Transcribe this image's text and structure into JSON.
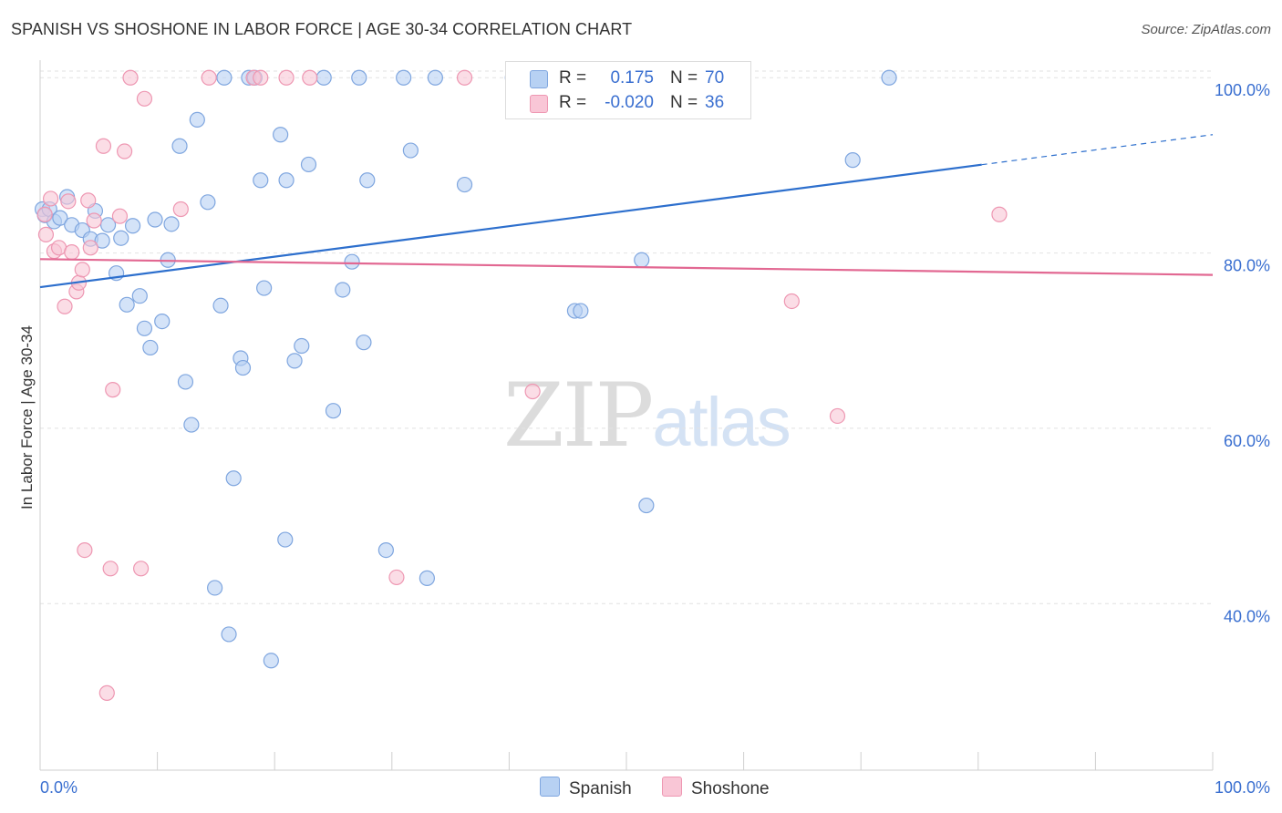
{
  "title": "SPANISH VS SHOSHONE IN LABOR FORCE | AGE 30-34 CORRELATION CHART",
  "source": "Source: ZipAtlas.com",
  "colors": {
    "blue_fill": "#b7d1f3",
    "blue_stroke": "#7fa6df",
    "blue_line": "#2d6fcd",
    "pink_fill": "#f9c6d6",
    "pink_stroke": "#ee97b2",
    "pink_line": "#e26892",
    "grid": "#e2e2e2",
    "tick_label": "#3a6fd0"
  },
  "legend_top": {
    "rows": [
      {
        "r_label": "R =",
        "r_value": "0.175",
        "n_label": "N =",
        "n_value": "70"
      },
      {
        "r_label": "R =",
        "r_value": "-0.020",
        "n_label": "N =",
        "n_value": "36"
      }
    ]
  },
  "legend_bottom": {
    "items": [
      "Spanish",
      "Shoshone"
    ]
  },
  "watermark": {
    "zip": "ZIP",
    "atlas": "atlas"
  },
  "chart_data": {
    "type": "scatter",
    "title": "SPANISH VS SHOSHONE IN LABOR FORCE | AGE 30-34 CORRELATION CHART",
    "xlabel": "",
    "ylabel": "In Labor Force | Age 30-34",
    "xlim": [
      0,
      100
    ],
    "ylim": [
      21,
      102
    ],
    "x_tick_labels": [
      "0.0%",
      "100.0%"
    ],
    "y_ticks": [
      40,
      60,
      80,
      100
    ],
    "y_tick_labels": [
      "40.0%",
      "60.0%",
      "80.0%",
      "100.0%"
    ],
    "grid": true,
    "legend_position": "top-center",
    "series": [
      {
        "name": "Spanish",
        "r": 0.175,
        "n": 70,
        "trend": {
          "x0": 0,
          "y0": 76.1,
          "x1": 100,
          "y1": 93.5,
          "solid_until": 80.3
        },
        "points": [
          [
            0.2,
            85.0
          ],
          [
            0.4,
            84.3
          ],
          [
            0.8,
            85.0
          ],
          [
            1.2,
            83.6
          ],
          [
            1.7,
            84.0
          ],
          [
            2.3,
            86.4
          ],
          [
            2.7,
            83.2
          ],
          [
            3.6,
            82.6
          ],
          [
            4.3,
            81.6
          ],
          [
            4.7,
            84.8
          ],
          [
            5.3,
            81.4
          ],
          [
            5.8,
            83.2
          ],
          [
            6.5,
            77.7
          ],
          [
            6.9,
            81.7
          ],
          [
            7.4,
            74.1
          ],
          [
            7.9,
            83.1
          ],
          [
            8.5,
            75.1
          ],
          [
            8.9,
            71.4
          ],
          [
            9.4,
            69.2
          ],
          [
            9.8,
            83.8
          ],
          [
            10.4,
            72.2
          ],
          [
            10.9,
            79.2
          ],
          [
            11.2,
            83.3
          ],
          [
            11.9,
            92.2
          ],
          [
            12.4,
            65.3
          ],
          [
            12.9,
            60.4
          ],
          [
            13.4,
            95.2
          ],
          [
            14.3,
            85.8
          ],
          [
            14.9,
            41.8
          ],
          [
            15.4,
            74.0
          ],
          [
            15.7,
            100.0
          ],
          [
            16.1,
            36.5
          ],
          [
            16.5,
            54.3
          ],
          [
            17.1,
            68.0
          ],
          [
            17.3,
            66.9
          ],
          [
            17.8,
            100.0
          ],
          [
            18.3,
            100.0
          ],
          [
            18.8,
            88.3
          ],
          [
            19.1,
            76.0
          ],
          [
            19.7,
            33.5
          ],
          [
            20.5,
            93.5
          ],
          [
            20.9,
            47.3
          ],
          [
            21.0,
            88.3
          ],
          [
            21.7,
            67.7
          ],
          [
            22.3,
            69.4
          ],
          [
            22.9,
            90.1
          ],
          [
            24.2,
            100.0
          ],
          [
            25.0,
            62.0
          ],
          [
            25.8,
            75.8
          ],
          [
            26.6,
            79.0
          ],
          [
            27.2,
            100.0
          ],
          [
            27.6,
            69.8
          ],
          [
            27.9,
            88.3
          ],
          [
            29.5,
            46.1
          ],
          [
            31.0,
            100.0
          ],
          [
            31.6,
            91.7
          ],
          [
            33.0,
            42.9
          ],
          [
            33.7,
            100.0
          ],
          [
            36.2,
            87.8
          ],
          [
            40.3,
            100.0
          ],
          [
            40.8,
            100.0
          ],
          [
            45.6,
            73.4
          ],
          [
            46.1,
            73.4
          ],
          [
            48.2,
            100.0
          ],
          [
            51.3,
            79.2
          ],
          [
            51.7,
            51.2
          ],
          [
            52.9,
            100.0
          ],
          [
            55.4,
            100.0
          ],
          [
            69.3,
            90.6
          ],
          [
            72.4,
            100.0
          ]
        ]
      },
      {
        "name": "Shoshone",
        "r": -0.02,
        "n": 36,
        "trend": {
          "x0": 0,
          "y0": 79.3,
          "x1": 100,
          "y1": 77.5
        },
        "points": [
          [
            0.4,
            84.4
          ],
          [
            0.5,
            82.1
          ],
          [
            0.9,
            86.2
          ],
          [
            1.2,
            80.2
          ],
          [
            1.6,
            80.6
          ],
          [
            2.1,
            73.9
          ],
          [
            2.4,
            85.9
          ],
          [
            2.7,
            80.1
          ],
          [
            3.1,
            75.6
          ],
          [
            3.3,
            76.6
          ],
          [
            3.6,
            78.1
          ],
          [
            3.8,
            46.1
          ],
          [
            4.1,
            86.0
          ],
          [
            4.3,
            80.6
          ],
          [
            4.6,
            83.7
          ],
          [
            5.4,
            92.2
          ],
          [
            5.7,
            29.8
          ],
          [
            6.0,
            44.0
          ],
          [
            6.2,
            64.4
          ],
          [
            6.8,
            84.2
          ],
          [
            7.2,
            91.6
          ],
          [
            7.7,
            100.0
          ],
          [
            8.6,
            44.0
          ],
          [
            8.9,
            97.6
          ],
          [
            12.0,
            85.0
          ],
          [
            14.4,
            100.0
          ],
          [
            18.2,
            100.0
          ],
          [
            18.8,
            100.0
          ],
          [
            21.0,
            100.0
          ],
          [
            23.0,
            100.0
          ],
          [
            30.4,
            43.0
          ],
          [
            36.2,
            100.0
          ],
          [
            42.0,
            64.2
          ],
          [
            64.1,
            74.5
          ],
          [
            68.0,
            61.4
          ],
          [
            81.8,
            84.4
          ]
        ]
      }
    ]
  }
}
